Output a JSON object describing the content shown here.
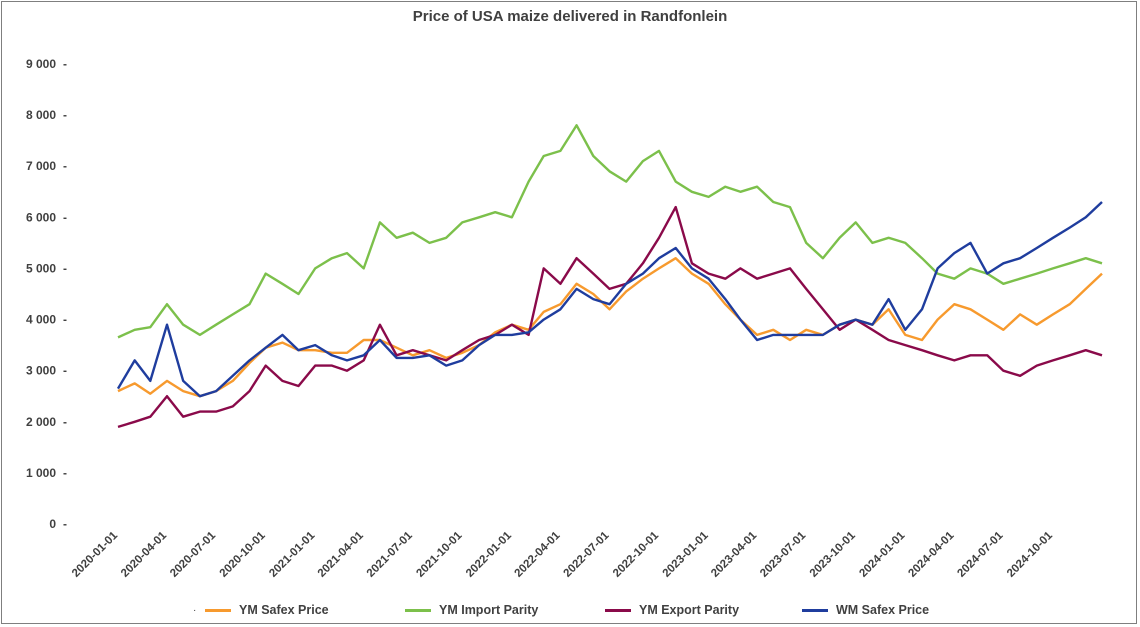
{
  "chart_data": {
    "type": "line",
    "title": "Price of USA maize delivered in Randfonlein",
    "xlabel": "",
    "ylabel": "",
    "ylim": [
      0,
      9000
    ],
    "y_ticks": [
      "0",
      "1 000",
      "2 000",
      "3 000",
      "4 000",
      "5 000",
      "6 000",
      "7 000",
      "8 000",
      "9 000"
    ],
    "x_ticks": [
      "2020-01-01",
      "2020-04-01",
      "2020-07-01",
      "2020-10-01",
      "2021-01-01",
      "2021-04-01",
      "2021-07-01",
      "2021-10-01",
      "2022-01-01",
      "2022-04-01",
      "2022-07-01",
      "2022-10-01",
      "2023-01-01",
      "2023-04-01",
      "2023-07-01",
      "2023-10-01",
      "2024-01-01",
      "2024-04-01",
      "2024-07-01",
      "2024-10-01"
    ],
    "x_range": [
      "2020-01-01",
      "2024-12-31"
    ],
    "legend_position": "bottom",
    "grid": false,
    "series": [
      {
        "name": "YM Safex Price",
        "color": "#f79a2e",
        "x": [
          "2020-01-01",
          "2020-02-01",
          "2020-03-01",
          "2020-04-01",
          "2020-05-01",
          "2020-06-01",
          "2020-07-01",
          "2020-08-01",
          "2020-09-01",
          "2020-10-01",
          "2020-11-01",
          "2020-12-01",
          "2021-01-01",
          "2021-02-01",
          "2021-03-01",
          "2021-04-01",
          "2021-05-01",
          "2021-06-01",
          "2021-07-01",
          "2021-08-01",
          "2021-09-01",
          "2021-10-01",
          "2021-11-01",
          "2021-12-01",
          "2022-01-01",
          "2022-02-01",
          "2022-03-01",
          "2022-04-01",
          "2022-05-01",
          "2022-06-01",
          "2022-07-01",
          "2022-08-01",
          "2022-09-01",
          "2022-10-01",
          "2022-11-01",
          "2022-12-01",
          "2023-01-01",
          "2023-02-01",
          "2023-03-01",
          "2023-04-01",
          "2023-05-01",
          "2023-06-01",
          "2023-07-01",
          "2023-08-01",
          "2023-09-01",
          "2023-10-01",
          "2023-11-01",
          "2023-12-01",
          "2024-01-01",
          "2024-02-01",
          "2024-03-01",
          "2024-04-01",
          "2024-05-01",
          "2024-06-01",
          "2024-07-01",
          "2024-08-01",
          "2024-09-01",
          "2024-10-01",
          "2024-11-01",
          "2024-12-01",
          "2024-12-31"
        ],
        "values": [
          2600,
          2750,
          2550,
          2800,
          2600,
          2500,
          2600,
          2800,
          3150,
          3450,
          3550,
          3400,
          3400,
          3350,
          3350,
          3600,
          3600,
          3450,
          3300,
          3400,
          3250,
          3350,
          3500,
          3750,
          3900,
          3800,
          4150,
          4300,
          4700,
          4500,
          4200,
          4550,
          4800,
          5000,
          5200,
          4900,
          4700,
          4300,
          4000,
          3700,
          3800,
          3600,
          3800,
          3700,
          3900,
          4000,
          3900,
          4200,
          3700,
          3600,
          4000,
          4300,
          4200,
          4000,
          3800,
          4100,
          3900,
          4100,
          4300,
          4600,
          4900
        ]
      },
      {
        "name": "YM Import Parity",
        "color": "#7cc04b",
        "x": [
          "2020-01-01",
          "2020-02-01",
          "2020-03-01",
          "2020-04-01",
          "2020-05-01",
          "2020-06-01",
          "2020-07-01",
          "2020-08-01",
          "2020-09-01",
          "2020-10-01",
          "2020-11-01",
          "2020-12-01",
          "2021-01-01",
          "2021-02-01",
          "2021-03-01",
          "2021-04-01",
          "2021-05-01",
          "2021-06-01",
          "2021-07-01",
          "2021-08-01",
          "2021-09-01",
          "2021-10-01",
          "2021-11-01",
          "2021-12-01",
          "2022-01-01",
          "2022-02-01",
          "2022-03-01",
          "2022-04-01",
          "2022-05-01",
          "2022-06-01",
          "2022-07-01",
          "2022-08-01",
          "2022-09-01",
          "2022-10-01",
          "2022-11-01",
          "2022-12-01",
          "2023-01-01",
          "2023-02-01",
          "2023-03-01",
          "2023-04-01",
          "2023-05-01",
          "2023-06-01",
          "2023-07-01",
          "2023-08-01",
          "2023-09-01",
          "2023-10-01",
          "2023-11-01",
          "2023-12-01",
          "2024-01-01",
          "2024-02-01",
          "2024-03-01",
          "2024-04-01",
          "2024-05-01",
          "2024-06-01",
          "2024-07-01",
          "2024-08-01",
          "2024-09-01",
          "2024-10-01",
          "2024-11-01",
          "2024-12-01",
          "2024-12-31"
        ],
        "values": [
          3650,
          3800,
          3850,
          4300,
          3900,
          3700,
          3900,
          4100,
          4300,
          4900,
          4700,
          4500,
          5000,
          5200,
          5300,
          5000,
          5900,
          5600,
          5700,
          5500,
          5600,
          5900,
          6000,
          6100,
          6000,
          6700,
          7200,
          7300,
          7800,
          7200,
          6900,
          6700,
          7100,
          7300,
          6700,
          6500,
          6400,
          6600,
          6500,
          6600,
          6300,
          6200,
          5500,
          5200,
          5600,
          5900,
          5500,
          5600,
          5500,
          5200,
          4900,
          4800,
          5000,
          4900,
          4700,
          4800,
          4900,
          5000,
          5100,
          5200,
          5100
        ]
      },
      {
        "name": "YM Export Parity",
        "color": "#8a0a4a",
        "x": [
          "2020-01-01",
          "2020-02-01",
          "2020-03-01",
          "2020-04-01",
          "2020-05-01",
          "2020-06-01",
          "2020-07-01",
          "2020-08-01",
          "2020-09-01",
          "2020-10-01",
          "2020-11-01",
          "2020-12-01",
          "2021-01-01",
          "2021-02-01",
          "2021-03-01",
          "2021-04-01",
          "2021-05-01",
          "2021-06-01",
          "2021-07-01",
          "2021-08-01",
          "2021-09-01",
          "2021-10-01",
          "2021-11-01",
          "2021-12-01",
          "2022-01-01",
          "2022-02-01",
          "2022-03-01",
          "2022-04-01",
          "2022-05-01",
          "2022-06-01",
          "2022-07-01",
          "2022-08-01",
          "2022-09-01",
          "2022-10-01",
          "2022-11-01",
          "2022-12-01",
          "2023-01-01",
          "2023-02-01",
          "2023-03-01",
          "2023-04-01",
          "2023-05-01",
          "2023-06-01",
          "2023-07-01",
          "2023-08-01",
          "2023-09-01",
          "2023-10-01",
          "2023-11-01",
          "2023-12-01",
          "2024-01-01",
          "2024-02-01",
          "2024-03-01",
          "2024-04-01",
          "2024-05-01",
          "2024-06-01",
          "2024-07-01",
          "2024-08-01",
          "2024-09-01",
          "2024-10-01",
          "2024-11-01",
          "2024-12-01",
          "2024-12-31"
        ],
        "values": [
          1900,
          2000,
          2100,
          2500,
          2100,
          2200,
          2200,
          2300,
          2600,
          3100,
          2800,
          2700,
          3100,
          3100,
          3000,
          3200,
          3900,
          3300,
          3400,
          3300,
          3200,
          3400,
          3600,
          3700,
          3900,
          3700,
          5000,
          4700,
          5200,
          4900,
          4600,
          4700,
          5100,
          5600,
          6200,
          5100,
          4900,
          4800,
          5000,
          4800,
          4900,
          5000,
          4600,
          4200,
          3800,
          4000,
          3800,
          3600,
          3500,
          3400,
          3300,
          3200,
          3300,
          3300,
          3000,
          2900,
          3100,
          3200,
          3300,
          3400,
          3300
        ]
      },
      {
        "name": "WM Safex Price",
        "color": "#1f3d9e",
        "x": [
          "2020-01-01",
          "2020-02-01",
          "2020-03-01",
          "2020-04-01",
          "2020-05-01",
          "2020-06-01",
          "2020-07-01",
          "2020-08-01",
          "2020-09-01",
          "2020-10-01",
          "2020-11-01",
          "2020-12-01",
          "2021-01-01",
          "2021-02-01",
          "2021-03-01",
          "2021-04-01",
          "2021-05-01",
          "2021-06-01",
          "2021-07-01",
          "2021-08-01",
          "2021-09-01",
          "2021-10-01",
          "2021-11-01",
          "2021-12-01",
          "2022-01-01",
          "2022-02-01",
          "2022-03-01",
          "2022-04-01",
          "2022-05-01",
          "2022-06-01",
          "2022-07-01",
          "2022-08-01",
          "2022-09-01",
          "2022-10-01",
          "2022-11-01",
          "2022-12-01",
          "2023-01-01",
          "2023-02-01",
          "2023-03-01",
          "2023-04-01",
          "2023-05-01",
          "2023-06-01",
          "2023-07-01",
          "2023-08-01",
          "2023-09-01",
          "2023-10-01",
          "2023-11-01",
          "2023-12-01",
          "2024-01-01",
          "2024-02-01",
          "2024-03-01",
          "2024-04-01",
          "2024-05-01",
          "2024-06-01",
          "2024-07-01",
          "2024-08-01",
          "2024-09-01",
          "2024-10-01",
          "2024-11-01",
          "2024-12-01",
          "2024-12-31"
        ],
        "values": [
          2650,
          3200,
          2800,
          3900,
          2800,
          2500,
          2600,
          2900,
          3200,
          3450,
          3700,
          3400,
          3500,
          3300,
          3200,
          3300,
          3600,
          3250,
          3250,
          3300,
          3100,
          3200,
          3500,
          3700,
          3700,
          3750,
          4000,
          4200,
          4600,
          4400,
          4300,
          4700,
          4900,
          5200,
          5400,
          5000,
          4800,
          4400,
          4000,
          3600,
          3700,
          3700,
          3700,
          3700,
          3900,
          4000,
          3900,
          4400,
          3800,
          4200,
          5000,
          5300,
          5500,
          4900,
          5100,
          5200,
          5400,
          5600,
          5800,
          6000,
          6300
        ]
      }
    ]
  }
}
